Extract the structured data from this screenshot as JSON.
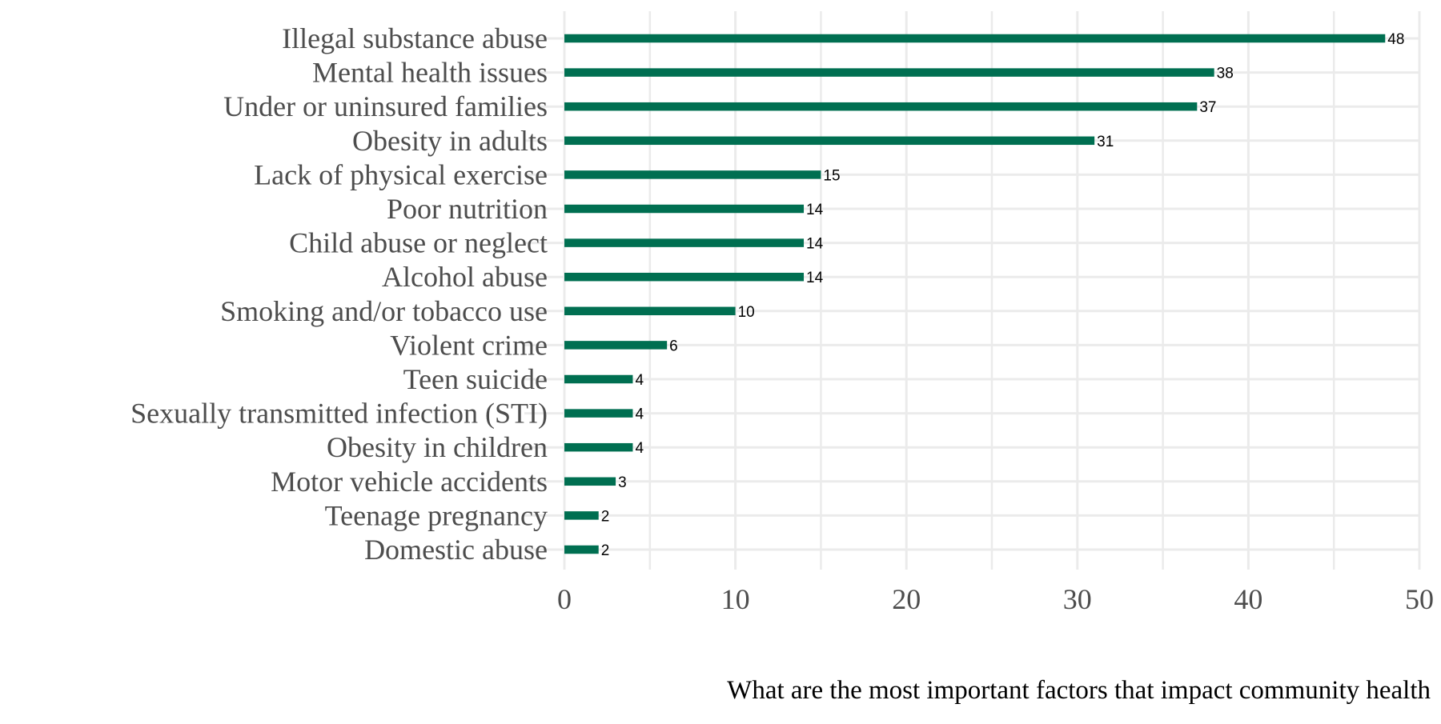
{
  "chart_data": {
    "type": "bar",
    "orientation": "horizontal",
    "categories": [
      "Illegal substance abuse",
      "Mental health issues",
      "Under or uninsured families",
      "Obesity in adults",
      "Lack of physical exercise",
      "Poor nutrition",
      "Child abuse or neglect",
      "Alcohol abuse",
      "Smoking and/or tobacco use",
      "Violent crime",
      "Teen suicide",
      "Sexually transmitted infection (STI)",
      "Obesity in children",
      "Motor vehicle accidents",
      "Teenage pregnancy",
      "Domestic abuse"
    ],
    "values": [
      48,
      38,
      37,
      31,
      15,
      14,
      14,
      14,
      10,
      6,
      4,
      4,
      4,
      3,
      2,
      2
    ],
    "data_labels": [
      "48",
      "38",
      "37",
      "31",
      "15",
      "14",
      "14",
      "14",
      "10",
      "6",
      "4",
      "4",
      "4",
      "3",
      "2",
      "2"
    ],
    "xlim": [
      0,
      50
    ],
    "xticks": [
      0,
      10,
      20,
      30,
      40,
      50
    ],
    "xtick_labels": [
      "0",
      "10",
      "20",
      "30",
      "40",
      "50"
    ],
    "caption": "What are the most important factors that impact community health",
    "grid": true,
    "legend": "none",
    "colors": {
      "bar": "#006f51",
      "grid": "#ebebeb",
      "axis_text": "#4d4d4d",
      "value_text": "#000000",
      "caption_text": "#000000"
    }
  }
}
